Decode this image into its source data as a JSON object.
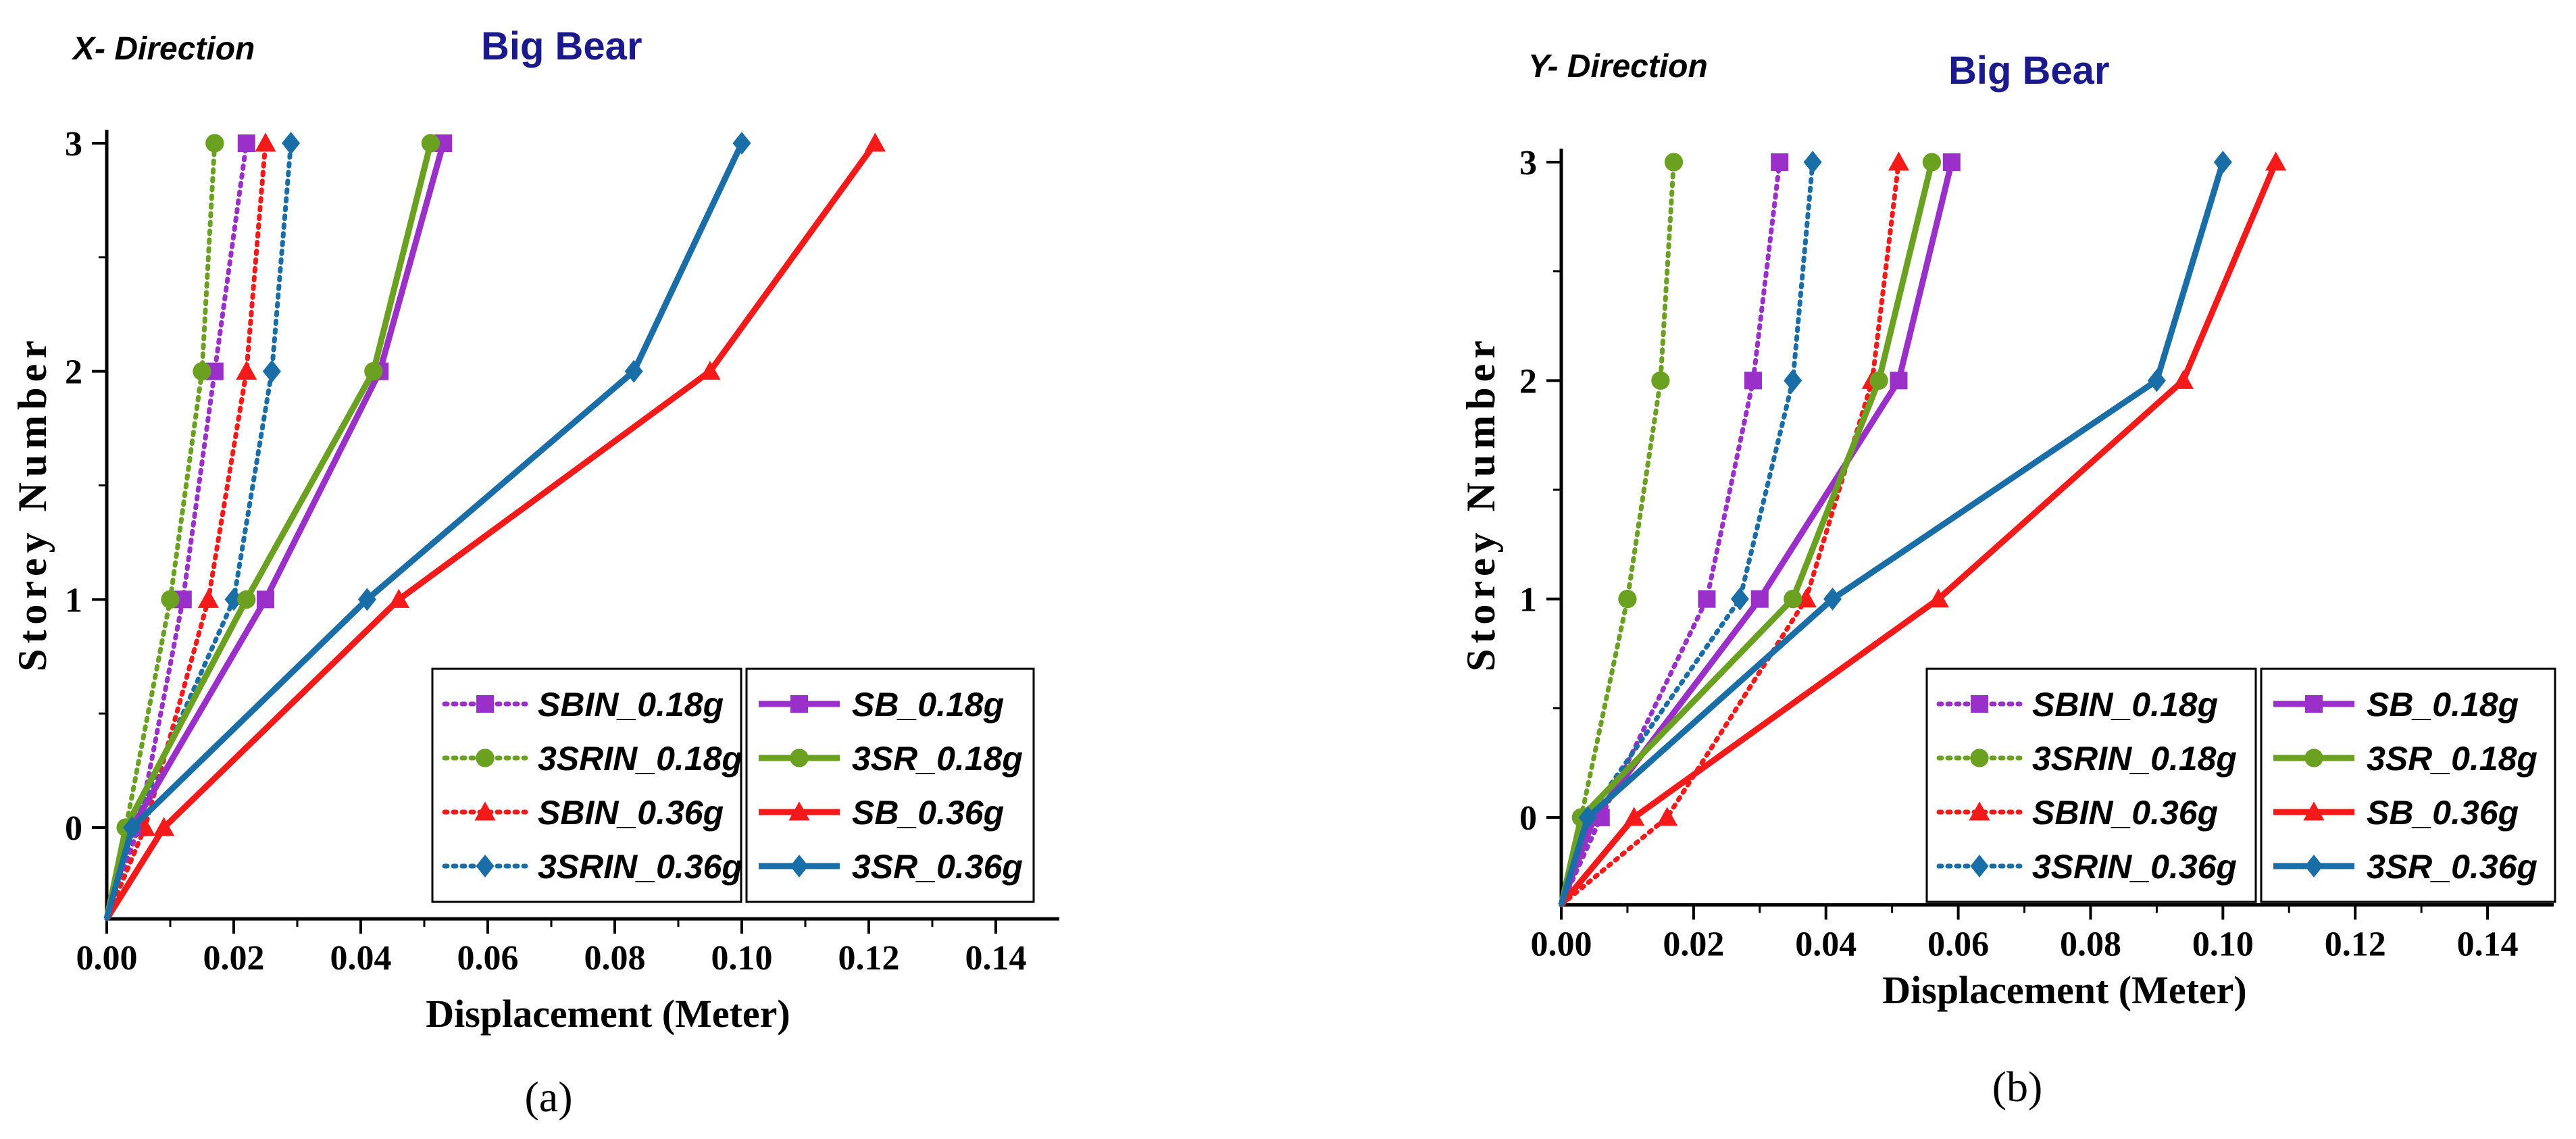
{
  "chart_data": [
    {
      "type": "line",
      "direction_label": "X- Direction",
      "title": "Big Bear",
      "xlabel": "Displacement (Meter)",
      "ylabel": "Storey Number",
      "panel_label": "(a)",
      "xlim": [
        0,
        0.15
      ],
      "ylim": [
        -0.4,
        3.1
      ],
      "xticks": [
        "0.00",
        "0.02",
        "0.04",
        "0.06",
        "0.08",
        "0.10",
        "0.12",
        "0.14"
      ],
      "yticks": [
        "0",
        "1",
        "2",
        "3"
      ],
      "legend_position": "bottom-right",
      "origin": [
        0.0,
        -0.4
      ],
      "series": [
        {
          "name": "SBIN_0.18g",
          "color": "#9b2fc9",
          "dashed": true,
          "marker": "square",
          "x": [
            0.005,
            0.012,
            0.017,
            0.022
          ],
          "y": [
            0,
            1,
            2,
            3
          ]
        },
        {
          "name": "3SRIN_0.18g",
          "color": "#6aa121",
          "dashed": true,
          "marker": "circle",
          "x": [
            0.003,
            0.01,
            0.015,
            0.017
          ],
          "y": [
            0,
            1,
            2,
            3
          ]
        },
        {
          "name": "SBIN_0.36g",
          "color": "#f41a1a",
          "dashed": true,
          "marker": "triangle",
          "x": [
            0.006,
            0.016,
            0.022,
            0.025
          ],
          "y": [
            0,
            1,
            2,
            3
          ]
        },
        {
          "name": "3SRIN_0.36g",
          "color": "#1a6ea8",
          "dashed": true,
          "marker": "diamond",
          "x": [
            0.004,
            0.02,
            0.026,
            0.029
          ],
          "y": [
            0,
            1,
            2,
            3
          ]
        },
        {
          "name": "SB_0.18g",
          "color": "#9b2fc9",
          "dashed": false,
          "marker": "square",
          "x": [
            0.004,
            0.025,
            0.043,
            0.053
          ],
          "y": [
            0,
            1,
            2,
            3
          ]
        },
        {
          "name": "3SR_0.18g",
          "color": "#6aa121",
          "dashed": false,
          "marker": "circle",
          "x": [
            0.003,
            0.022,
            0.042,
            0.051
          ],
          "y": [
            0,
            1,
            2,
            3
          ]
        },
        {
          "name": "SB_0.36g",
          "color": "#f41a1a",
          "dashed": false,
          "marker": "triangle",
          "x": [
            0.009,
            0.046,
            0.095,
            0.121
          ],
          "y": [
            0,
            1,
            2,
            3
          ]
        },
        {
          "name": "3SR_0.36g",
          "color": "#1a6ea8",
          "dashed": false,
          "marker": "diamond",
          "x": [
            0.004,
            0.041,
            0.083,
            0.1
          ],
          "y": [
            0,
            1,
            2,
            3
          ]
        }
      ]
    },
    {
      "type": "line",
      "direction_label": "Y- Direction",
      "title": "Big Bear",
      "xlabel": "Displacement (Meter)",
      "ylabel": "Storey Number",
      "panel_label": "(b)",
      "xlim": [
        0,
        0.15
      ],
      "ylim": [
        -0.4,
        3.1
      ],
      "xticks": [
        "0.00",
        "0.02",
        "0.04",
        "0.06",
        "0.08",
        "0.10",
        "0.12",
        "0.14"
      ],
      "yticks": [
        "0",
        "1",
        "2",
        "3"
      ],
      "legend_position": "bottom-right",
      "origin": [
        0.0,
        -0.4
      ],
      "series": [
        {
          "name": "SBIN_0.18g",
          "color": "#9b2fc9",
          "dashed": true,
          "marker": "square",
          "x": [
            0.006,
            0.022,
            0.029,
            0.033
          ],
          "y": [
            0,
            1,
            2,
            3
          ]
        },
        {
          "name": "3SRIN_0.18g",
          "color": "#6aa121",
          "dashed": true,
          "marker": "circle",
          "x": [
            0.003,
            0.01,
            0.015,
            0.017
          ],
          "y": [
            0,
            1,
            2,
            3
          ]
        },
        {
          "name": "SBIN_0.36g",
          "color": "#f41a1a",
          "dashed": true,
          "marker": "triangle",
          "x": [
            0.016,
            0.037,
            0.047,
            0.051
          ],
          "y": [
            0,
            1,
            2,
            3
          ]
        },
        {
          "name": "3SRIN_0.36g",
          "color": "#1a6ea8",
          "dashed": true,
          "marker": "diamond",
          "x": [
            0.004,
            0.027,
            0.035,
            0.038
          ],
          "y": [
            0,
            1,
            2,
            3
          ]
        },
        {
          "name": "SB_0.18g",
          "color": "#9b2fc9",
          "dashed": false,
          "marker": "square",
          "x": [
            0.005,
            0.03,
            0.051,
            0.059
          ],
          "y": [
            0,
            1,
            2,
            3
          ]
        },
        {
          "name": "3SR_0.18g",
          "color": "#6aa121",
          "dashed": false,
          "marker": "circle",
          "x": [
            0.003,
            0.035,
            0.048,
            0.056
          ],
          "y": [
            0,
            1,
            2,
            3
          ]
        },
        {
          "name": "SB_0.36g",
          "color": "#f41a1a",
          "dashed": false,
          "marker": "triangle",
          "x": [
            0.011,
            0.057,
            0.094,
            0.108
          ],
          "y": [
            0,
            1,
            2,
            3
          ]
        },
        {
          "name": "3SR_0.36g",
          "color": "#1a6ea8",
          "dashed": false,
          "marker": "diamond",
          "x": [
            0.004,
            0.041,
            0.09,
            0.1
          ],
          "y": [
            0,
            1,
            2,
            3
          ]
        }
      ]
    }
  ]
}
